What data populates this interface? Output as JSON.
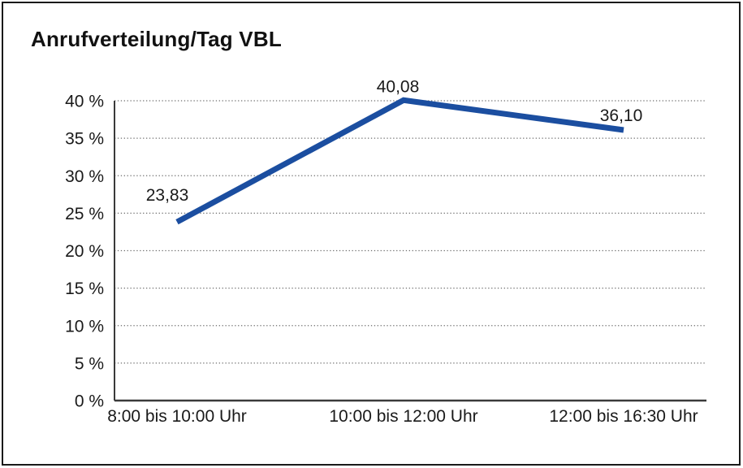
{
  "chart_data": {
    "type": "line",
    "title": "Anrufverteilung/Tag VBL",
    "categories": [
      "8:00 bis 10:00 Uhr",
      "10:00 bis 12:00 Uhr",
      "12:00 bis 16:30 Uhr"
    ],
    "values": [
      23.83,
      40.08,
      36.1
    ],
    "data_labels": [
      "23,83",
      "40,08",
      "36,10"
    ],
    "xlabel": "",
    "ylabel": "",
    "ylim": [
      0,
      40
    ],
    "ytick_step": 5,
    "ytick_labels": [
      "0 %",
      "5 %",
      "10 %",
      "15 %",
      "20 %",
      "25 %",
      "30 %",
      "35 %",
      "40 %"
    ],
    "grid": "horizontal dotted",
    "legend": "none",
    "series_name": "Anrufverteilung/Tag VBL",
    "colors": {
      "line": "#1b4ea0",
      "axis": "#3a3a3a",
      "grid": "#6e6e6e",
      "text": "#1a1a1a",
      "background": "#ffffff",
      "border": "#1a1a1a"
    }
  }
}
